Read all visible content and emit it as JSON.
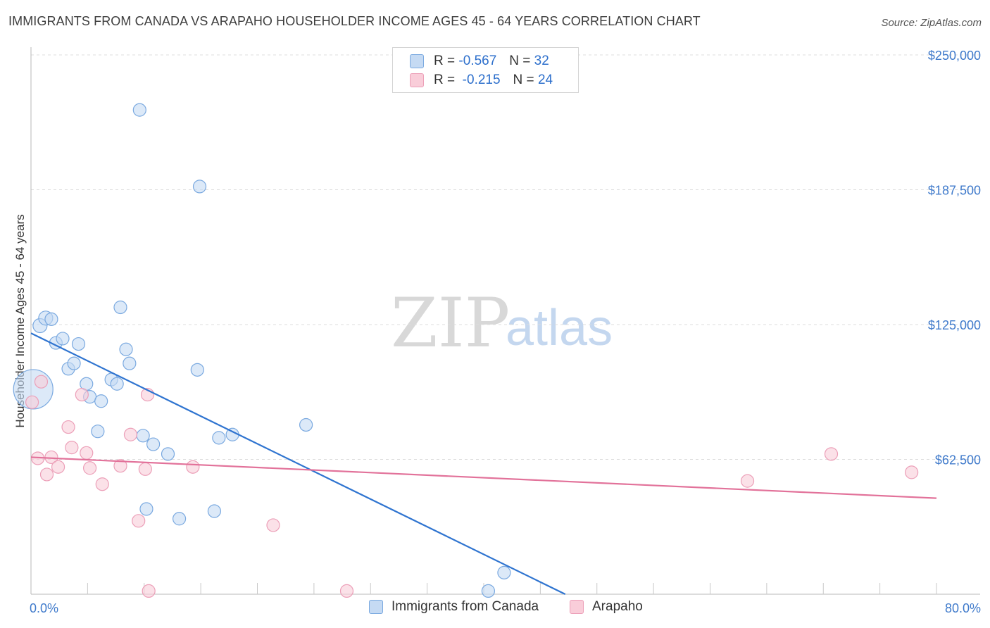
{
  "chart_data": {
    "type": "scatter",
    "title": "IMMIGRANTS FROM CANADA VS ARAPAHO HOUSEHOLDER INCOME AGES 45 - 64 YEARS CORRELATION CHART",
    "source": "Source: ZipAtlas.com",
    "ylabel": "Householder Income Ages 45 - 64 years",
    "xlabel": "",
    "xlim": [
      0,
      80
    ],
    "ylim": [
      0,
      250000
    ],
    "x_tick_labels": [
      "0.0%",
      "80.0%"
    ],
    "y_tick_values": [
      62500,
      125000,
      187500,
      250000
    ],
    "y_tick_labels": [
      "$62,500",
      "$125,000",
      "$187,500",
      "$250,000"
    ],
    "grid": true,
    "watermark": {
      "zip": "ZIP",
      "atlas": "atlas"
    },
    "legend": {
      "rows": [
        {
          "r_label": "R =",
          "r_value": "-0.567",
          "n_label": "N =",
          "n_value": "32"
        },
        {
          "r_label": "R =",
          "r_value": "-0.215",
          "n_label": "N =",
          "n_value": "24"
        }
      ]
    },
    "series": [
      {
        "name": "Immigrants from Canada",
        "color": "#7aa9e0",
        "fill": "#c5daf3",
        "line_color": "#2f74d0",
        "trend": {
          "x": [
            0,
            47.2
          ],
          "y": [
            121000,
            0
          ]
        },
        "points": [
          [
            0.2,
            95000,
            28
          ],
          [
            0.8,
            124500,
            10
          ],
          [
            1.3,
            128000,
            10
          ],
          [
            1.8,
            127500,
            9
          ],
          [
            2.2,
            116500,
            9
          ],
          [
            2.8,
            118500,
            9
          ],
          [
            3.3,
            104500,
            9
          ],
          [
            3.8,
            107000,
            9
          ],
          [
            4.2,
            116000,
            9
          ],
          [
            4.9,
            97500,
            9
          ],
          [
            5.2,
            91500,
            9
          ],
          [
            5.9,
            75500,
            9
          ],
          [
            6.2,
            89500,
            9
          ],
          [
            7.1,
            99500,
            9
          ],
          [
            7.6,
            97500,
            9
          ],
          [
            7.9,
            133000,
            9
          ],
          [
            8.4,
            113500,
            9
          ],
          [
            8.7,
            107000,
            9
          ],
          [
            9.6,
            224500,
            9
          ],
          [
            9.9,
            73500,
            9
          ],
          [
            10.2,
            39500,
            9
          ],
          [
            10.8,
            69500,
            9
          ],
          [
            12.1,
            65000,
            9
          ],
          [
            13.1,
            35000,
            9
          ],
          [
            14.7,
            104000,
            9
          ],
          [
            14.9,
            189000,
            9
          ],
          [
            16.2,
            38500,
            9
          ],
          [
            16.6,
            72500,
            9
          ],
          [
            17.8,
            74000,
            9
          ],
          [
            24.3,
            78500,
            9
          ],
          [
            40.4,
            1500,
            9
          ],
          [
            41.8,
            10000,
            9
          ]
        ]
      },
      {
        "name": "Arapaho",
        "color": "#ec9fb8",
        "fill": "#f9cdd9",
        "line_color": "#e2729a",
        "trend": {
          "x": [
            0,
            80
          ],
          "y": [
            63500,
            44500
          ]
        },
        "points": [
          [
            0.1,
            89000,
            9
          ],
          [
            0.6,
            63000,
            9
          ],
          [
            0.9,
            98500,
            9
          ],
          [
            1.4,
            55500,
            9
          ],
          [
            1.8,
            63500,
            9
          ],
          [
            2.4,
            59000,
            9
          ],
          [
            3.3,
            77500,
            9
          ],
          [
            3.6,
            68000,
            9
          ],
          [
            4.5,
            92500,
            9
          ],
          [
            4.9,
            65500,
            9
          ],
          [
            5.2,
            58500,
            9
          ],
          [
            6.3,
            51000,
            9
          ],
          [
            7.9,
            59500,
            9
          ],
          [
            8.8,
            74000,
            9
          ],
          [
            9.5,
            34000,
            9
          ],
          [
            10.1,
            58000,
            9
          ],
          [
            10.3,
            92500,
            9
          ],
          [
            10.4,
            1500,
            9
          ],
          [
            14.3,
            59000,
            9
          ],
          [
            21.4,
            32000,
            9
          ],
          [
            27.9,
            1500,
            9
          ],
          [
            63.3,
            52500,
            9
          ],
          [
            70.7,
            65000,
            9
          ],
          [
            77.8,
            56500,
            9
          ]
        ]
      }
    ]
  }
}
